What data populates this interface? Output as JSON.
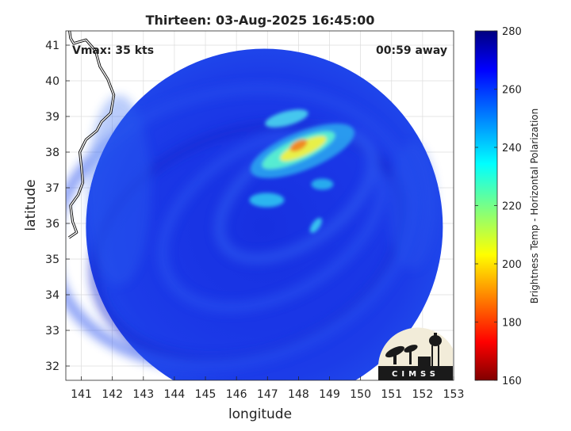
{
  "chart_data": {
    "type": "heatmap",
    "title": "Thirteen: 03-Aug-2025 16:45:00",
    "xlabel": "longitude",
    "ylabel": "latitude",
    "xlim": [
      140.5,
      153
    ],
    "ylim": [
      31.6,
      41.4
    ],
    "x_ticks": [
      141,
      142,
      143,
      144,
      145,
      146,
      147,
      148,
      149,
      150,
      151,
      152,
      153
    ],
    "y_ticks": [
      32,
      33,
      34,
      35,
      36,
      37,
      38,
      39,
      40,
      41
    ],
    "grid": true,
    "annotations": {
      "left": "Vmax: 35 kts",
      "right": "00:59 away"
    },
    "colorbar": {
      "label": "Brightness Temp - Horizontal Polarization",
      "range": [
        160,
        280
      ],
      "ticks": [
        160,
        180,
        200,
        220,
        240,
        260,
        280
      ],
      "colormap": "jet"
    },
    "features": {
      "swath_center": [
        146.9,
        35.9
      ],
      "swath_radius_deg_lat": 5.0,
      "background_temp": 265,
      "cold_core_center": [
        148.0,
        38.1
      ],
      "cold_core_min_temp": 185
    },
    "logo_text": "CIMSS"
  }
}
